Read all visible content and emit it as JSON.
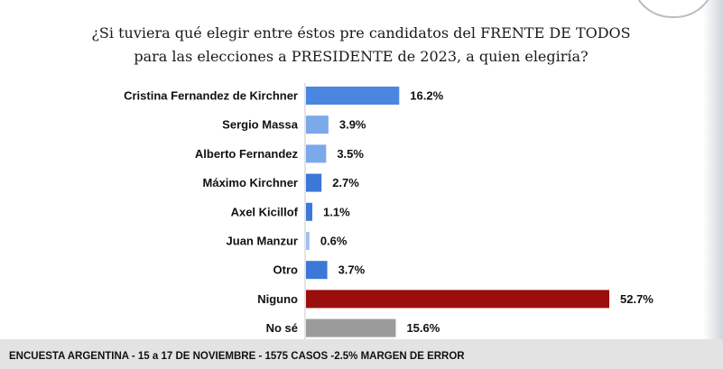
{
  "title_lines": [
    "¿Si tuviera qué elegir entre éstos pre candidatos del FRENTE DE TODOS",
    "para las elecciones a PRESIDENTE  de 2023, a quien elegiría?"
  ],
  "footer": "ENCUESTA ARGENTINA - 15 a 17 DE NOVIEMBRE - 1575 CASOS -2.5% MARGEN DE ERROR",
  "chart_data": {
    "type": "bar",
    "orientation": "horizontal",
    "title": "¿Si tuviera qué elegir entre éstos pre candidatos del FRENTE DE TODOS para las elecciones a PRESIDENTE  de 2023, a quien elegiría?",
    "categories": [
      "Cristina Fernandez de Kirchner",
      "Sergio Massa",
      "Alberto Fernandez",
      "Máximo Kirchner",
      "Axel Kicillof",
      "Juan Manzur",
      "Otro",
      "Niguno",
      "No sé"
    ],
    "values": [
      16.2,
      3.9,
      3.5,
      2.7,
      1.1,
      0.6,
      3.7,
      52.7,
      15.6
    ],
    "labels": [
      "16.2%",
      "3.9%",
      "3.5%",
      "2.7%",
      "1.1%",
      "0.6%",
      "3.7%",
      "52.7%",
      "15.6%"
    ],
    "colors": [
      "#4a86e0",
      "#7ba9ea",
      "#7ba9ea",
      "#3b78d8",
      "#3b78d8",
      "#9fc0f0",
      "#3b78d8",
      "#9a0e0e",
      "#9b9b9b"
    ],
    "xlim": [
      0,
      55
    ],
    "xlabel": "",
    "ylabel": "",
    "grid": false
  }
}
